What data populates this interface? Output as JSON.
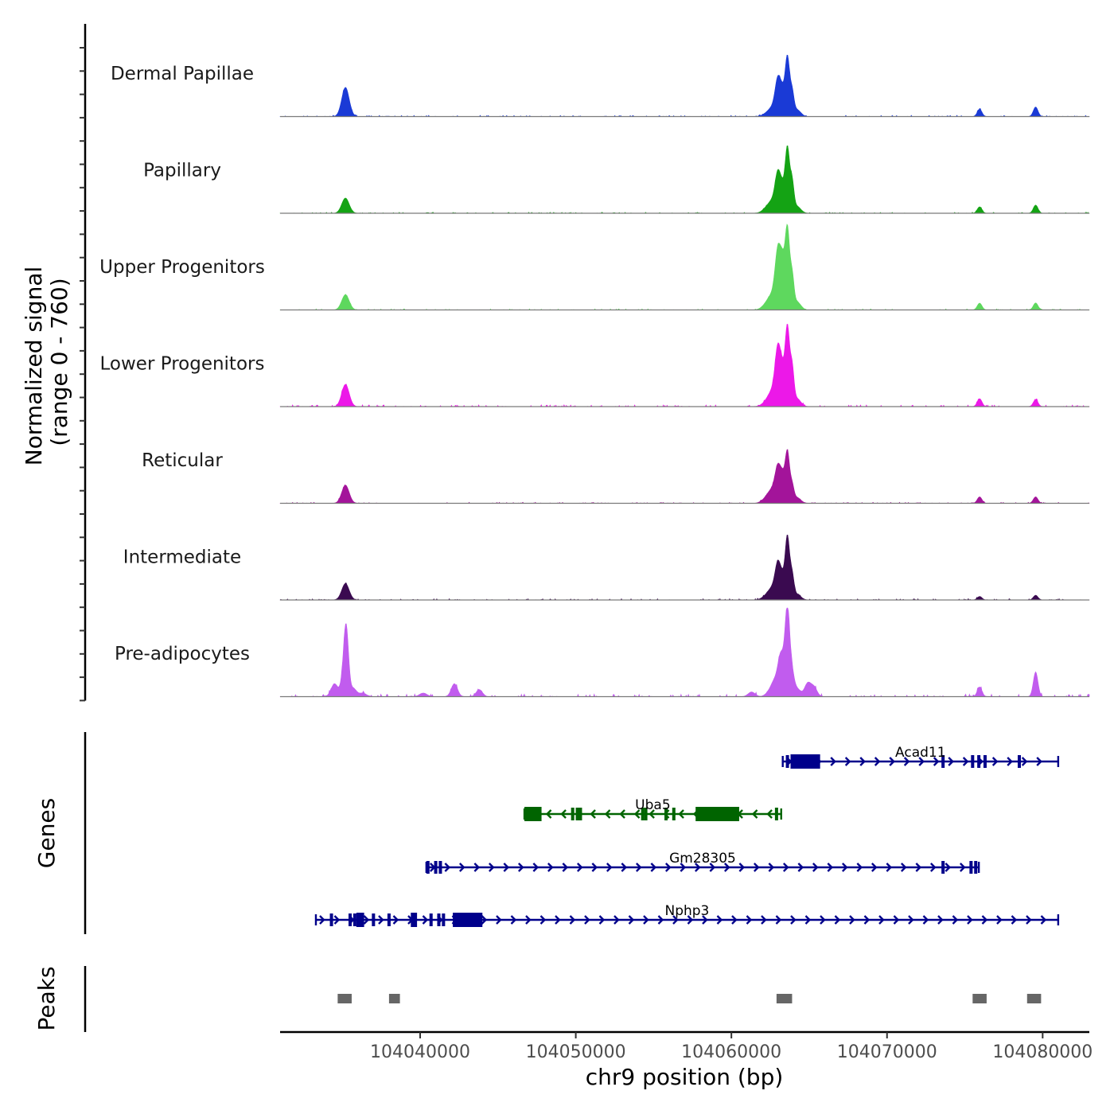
{
  "chart_data": {
    "type": "area",
    "title": "",
    "xlabel": "chr9 position (bp)",
    "ylabel_line1": "Normalized signal",
    "ylabel_line2": "(range 0 - 760)",
    "ylim": [
      0,
      760
    ],
    "xlim": [
      104031000,
      104083000
    ],
    "x_ticks": [
      104040000,
      104050000,
      104060000,
      104070000,
      104080000
    ],
    "x_tick_labels": [
      "104040000",
      "104050000",
      "104060000",
      "104070000",
      "104080000"
    ],
    "genes_title": "Genes",
    "peaks_title": "Peaks",
    "peak_heights_max": [
      [
        104035300,
        1,
        150
      ],
      [
        104062700,
        1,
        80
      ],
      [
        104063000,
        1,
        260
      ],
      [
        104063300,
        1,
        150
      ],
      [
        104063600,
        1,
        370
      ],
      [
        104064000,
        1,
        60
      ],
      [
        104075950,
        1,
        50
      ],
      [
        104079550,
        1,
        60
      ]
    ],
    "series": [
      {
        "name": "Dermal Papillae",
        "color": "#1a3ad6",
        "peaks": [
          [
            104035200,
            240,
            250
          ],
          [
            104062300,
            300,
            22
          ],
          [
            104062700,
            280,
            70
          ],
          [
            104063000,
            180,
            290
          ],
          [
            104063300,
            150,
            165
          ],
          [
            104063600,
            140,
            495
          ],
          [
            104063900,
            120,
            185
          ],
          [
            104064200,
            250,
            60
          ],
          [
            104075950,
            150,
            62
          ],
          [
            104079550,
            150,
            82
          ]
        ],
        "noise": 5
      },
      {
        "name": "Papillary",
        "color": "#14a314",
        "peaks": [
          [
            104035200,
            240,
            130
          ],
          [
            104062300,
            300,
            40
          ],
          [
            104062700,
            280,
            90
          ],
          [
            104063000,
            180,
            300
          ],
          [
            104063300,
            150,
            165
          ],
          [
            104063600,
            140,
            545
          ],
          [
            104063900,
            120,
            240
          ],
          [
            104064200,
            250,
            60
          ],
          [
            104075950,
            150,
            55
          ],
          [
            104079550,
            150,
            70
          ]
        ],
        "noise": 4
      },
      {
        "name": "Upper Progenitors",
        "color": "#5ed85e",
        "peaks": [
          [
            104035200,
            240,
            130
          ],
          [
            104062300,
            300,
            50
          ],
          [
            104062700,
            280,
            110
          ],
          [
            104063000,
            180,
            455
          ],
          [
            104063300,
            150,
            330
          ],
          [
            104063600,
            140,
            670
          ],
          [
            104063900,
            120,
            260
          ],
          [
            104064200,
            250,
            70
          ],
          [
            104075950,
            150,
            58
          ],
          [
            104079550,
            150,
            60
          ]
        ],
        "noise": 4
      },
      {
        "name": "Lower Progenitors",
        "color": "#ec18e8",
        "peaks": [
          [
            104035200,
            240,
            190
          ],
          [
            104062300,
            300,
            40
          ],
          [
            104062700,
            280,
            120
          ],
          [
            104063000,
            180,
            445
          ],
          [
            104063300,
            150,
            230
          ],
          [
            104063600,
            140,
            660
          ],
          [
            104063900,
            120,
            300
          ],
          [
            104064200,
            250,
            70
          ],
          [
            104075950,
            150,
            68
          ],
          [
            104079550,
            150,
            60
          ]
        ],
        "noise": 7
      },
      {
        "name": "Reticular",
        "color": "#a3149a",
        "peaks": [
          [
            104035200,
            240,
            155
          ],
          [
            104062300,
            300,
            45
          ],
          [
            104062700,
            280,
            100
          ],
          [
            104063000,
            180,
            260
          ],
          [
            104063300,
            150,
            180
          ],
          [
            104063600,
            140,
            425
          ],
          [
            104063900,
            120,
            130
          ],
          [
            104064200,
            250,
            50
          ],
          [
            104075950,
            150,
            55
          ],
          [
            104079550,
            150,
            55
          ]
        ],
        "noise": 4
      },
      {
        "name": "Intermediate",
        "color": "#3a0a50",
        "peaks": [
          [
            104035200,
            240,
            140
          ],
          [
            104062300,
            300,
            35
          ],
          [
            104062700,
            280,
            90
          ],
          [
            104063000,
            180,
            270
          ],
          [
            104063300,
            150,
            140
          ],
          [
            104063600,
            140,
            530
          ],
          [
            104063900,
            120,
            190
          ],
          [
            104064200,
            250,
            50
          ],
          [
            104075950,
            150,
            30
          ],
          [
            104079550,
            150,
            40
          ]
        ],
        "noise": 5
      },
      {
        "name": "Pre-adipocytes",
        "color": "#c15cee",
        "peaks": [
          [
            104034500,
            220,
            110
          ],
          [
            104035050,
            160,
            130
          ],
          [
            104035250,
            150,
            560
          ],
          [
            104035700,
            200,
            70
          ],
          [
            104036300,
            240,
            30
          ],
          [
            104040200,
            240,
            30
          ],
          [
            104042200,
            200,
            110
          ],
          [
            104043800,
            200,
            60
          ],
          [
            104061300,
            220,
            40
          ],
          [
            104062500,
            250,
            50
          ],
          [
            104062800,
            200,
            110
          ],
          [
            104063100,
            160,
            220
          ],
          [
            104063300,
            160,
            210
          ],
          [
            104063600,
            150,
            740
          ],
          [
            104063900,
            140,
            160
          ],
          [
            104064200,
            240,
            70
          ],
          [
            104064900,
            200,
            110
          ],
          [
            104065300,
            200,
            80
          ],
          [
            104075950,
            150,
            82
          ],
          [
            104079550,
            150,
            210
          ]
        ],
        "noise": 10
      }
    ],
    "genes": [
      {
        "name": "Acad11",
        "color": "#00008b",
        "strand": "+",
        "start": 104063300,
        "end": 104081000,
        "thick_blocks": [
          [
            104063800,
            104065700
          ]
        ],
        "exons": [
          104063600,
          104073600,
          104075500,
          104075900,
          104076300,
          104078500
        ]
      },
      {
        "name": "Uba5",
        "color": "#006400",
        "strand": "-",
        "start": 104046700,
        "end": 104063200,
        "thick_blocks": [
          [
            104046700,
            104047800
          ],
          [
            104057700,
            104060500
          ]
        ],
        "exons": [
          104049800,
          104050100,
          104050300,
          104054300,
          104054500,
          104055800,
          104056300,
          104062900
        ]
      },
      {
        "name": "Gm28305",
        "color": "#00008b",
        "strand": "+",
        "start": 104040400,
        "end": 104075900,
        "thick_blocks": [],
        "exons": [
          104040500,
          104041000,
          104041300,
          104073600,
          104075400,
          104075700
        ]
      },
      {
        "name": "Nphp3",
        "color": "#00008b",
        "strand": "+",
        "start": 104033300,
        "end": 104081000,
        "thick_blocks": [
          [
            104035900,
            104036400
          ],
          [
            104039400,
            104039800
          ],
          [
            104042100,
            104044000
          ]
        ],
        "exons": [
          104034300,
          104035500,
          104035800,
          104037000,
          104038000,
          104040700,
          104041200,
          104041500
        ]
      }
    ],
    "peak_regions": [
      [
        104034700,
        104035600
      ],
      [
        104038000,
        104038700
      ],
      [
        104062900,
        104063900
      ],
      [
        104075500,
        104076400
      ],
      [
        104079000,
        104079900
      ]
    ],
    "peaks_color": "#666666"
  }
}
